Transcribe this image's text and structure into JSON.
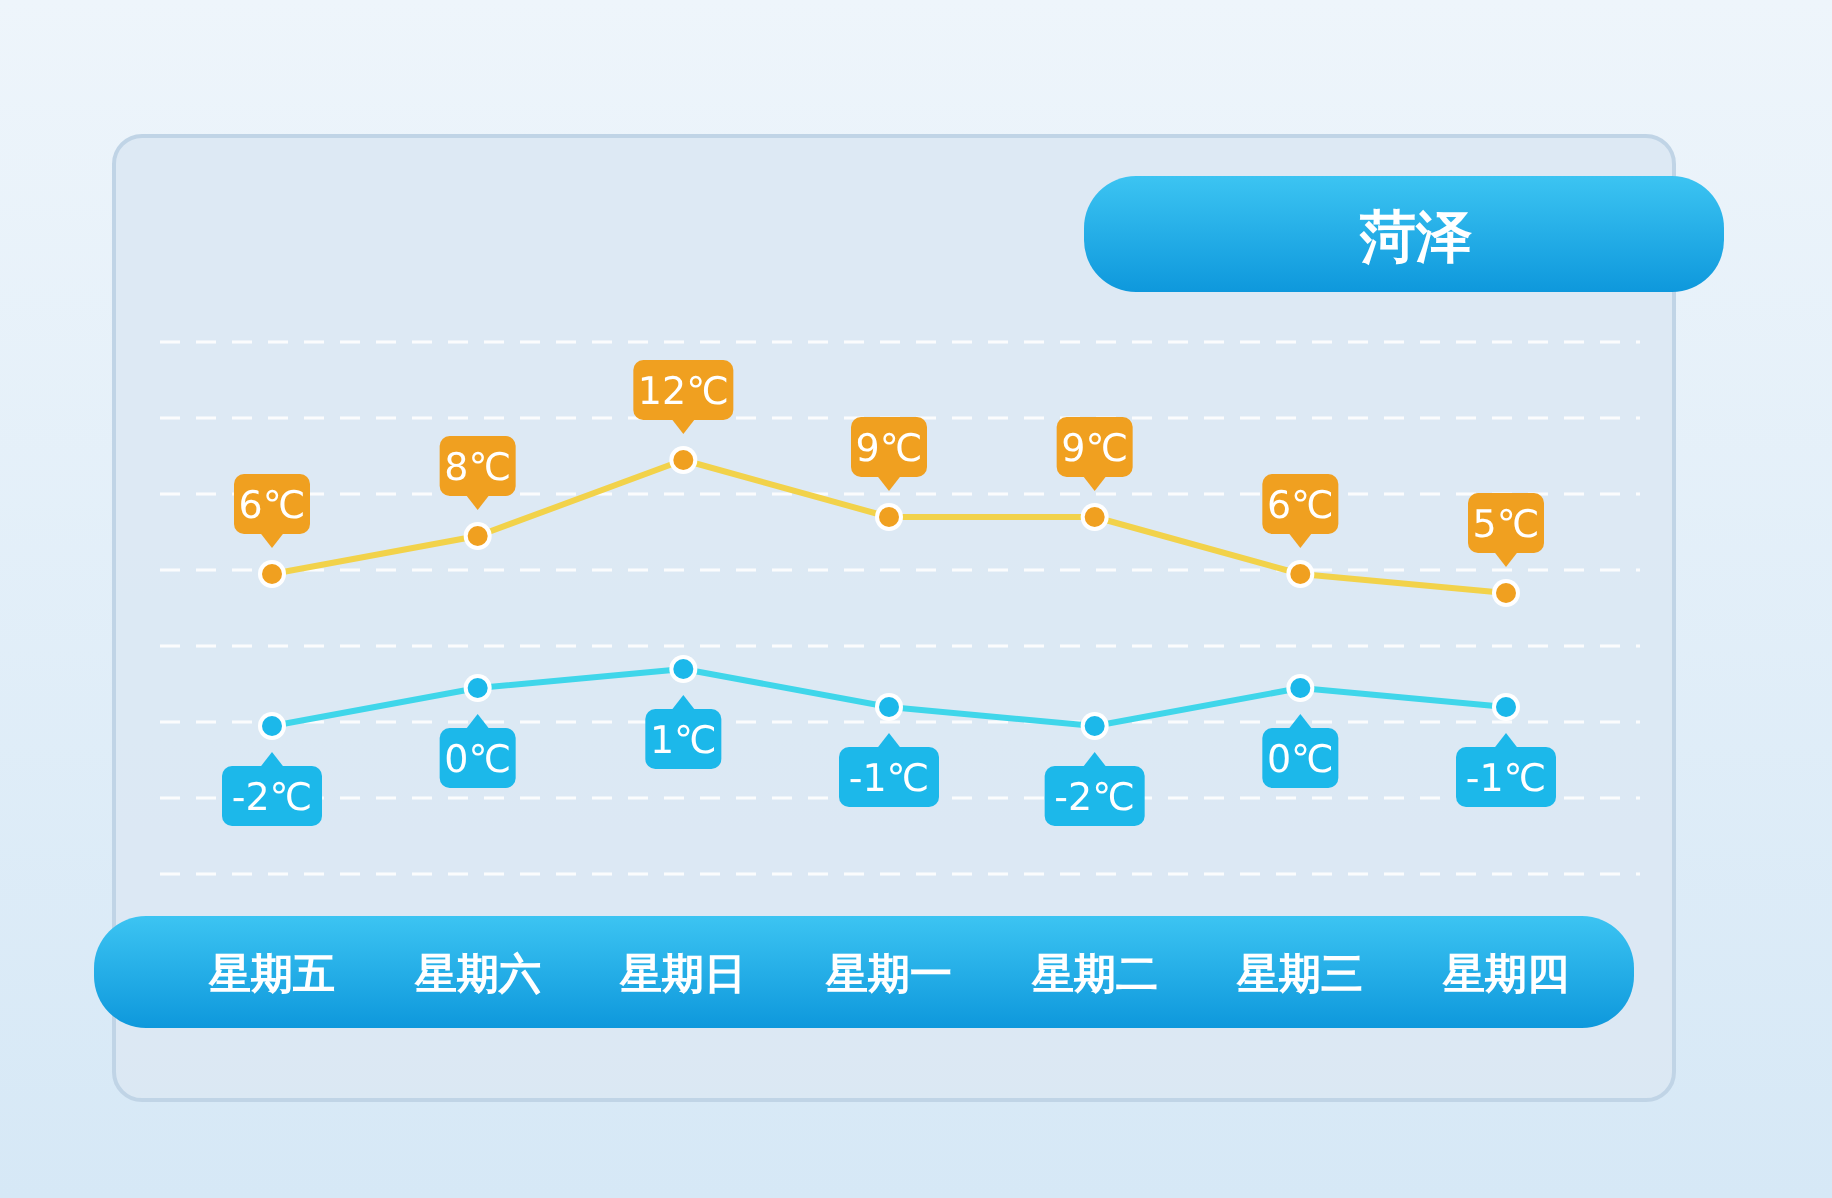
{
  "chart_data": {
    "type": "line",
    "title": "菏泽",
    "categories": [
      "星期五",
      "星期六",
      "星期日",
      "星期一",
      "星期二",
      "星期三",
      "星期四"
    ],
    "series": [
      {
        "color": "#f0a020",
        "values": [
          6,
          8,
          12,
          9,
          9,
          6,
          5
        ],
        "value_labels": [
          "6℃",
          "8℃",
          "12℃",
          "9℃",
          "9℃",
          "6℃",
          "5℃"
        ]
      },
      {
        "color": "#1cb8ea",
        "values": [
          -2,
          0,
          1,
          -1,
          -2,
          0,
          -1
        ],
        "value_labels": [
          "-2℃",
          "0℃",
          "1℃",
          "-1℃",
          "-2℃",
          "0℃",
          "-1℃"
        ]
      }
    ],
    "marker": "circle",
    "line_style": "solid",
    "grid": "y"
  }
}
